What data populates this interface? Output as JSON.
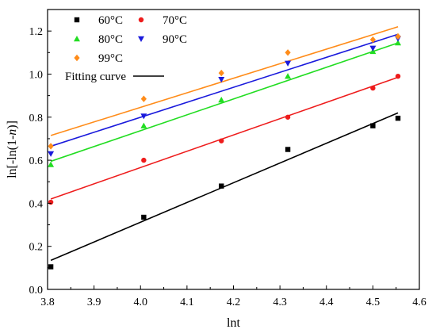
{
  "chart_data": {
    "type": "scatter",
    "xlabel": "lnt",
    "ylabel": "ln[-ln(1-",
    "ylabel_italic": "n",
    "ylabel_suffix": ")]",
    "xlim": [
      3.8,
      4.6
    ],
    "ylim": [
      0.0,
      1.3
    ],
    "x_ticks": [
      "3.8",
      "3.9",
      "4.0",
      "4.1",
      "4.2",
      "4.3",
      "4.4",
      "4.5",
      "4.6"
    ],
    "y_ticks": [
      "0.0",
      "0.2",
      "0.4",
      "0.6",
      "0.8",
      "1.0",
      "1.2"
    ],
    "grid": false,
    "legend_position": "top-left",
    "x": [
      3.807,
      4.007,
      4.174,
      4.317,
      4.5,
      4.554
    ],
    "series": [
      {
        "name": "60°C",
        "marker": "square",
        "color": "#000000",
        "values": [
          0.105,
          0.335,
          0.48,
          0.65,
          0.76,
          0.795
        ],
        "fit": [
          0.135,
          0.82
        ]
      },
      {
        "name": "70°C",
        "marker": "circle",
        "color": "#ee1c1c",
        "values": [
          0.405,
          0.6,
          0.69,
          0.8,
          0.935,
          0.99
        ],
        "fit": [
          0.42,
          0.985
        ]
      },
      {
        "name": "80°C",
        "marker": "triangle-up",
        "color": "#22dd22",
        "values": [
          0.58,
          0.76,
          0.88,
          0.99,
          1.105,
          1.145
        ],
        "fit": [
          0.595,
          1.145
        ]
      },
      {
        "name": "90°C",
        "marker": "triangle-down",
        "color": "#1a1adc",
        "values": [
          0.63,
          0.805,
          0.975,
          1.05,
          1.12,
          1.165
        ],
        "fit": [
          0.665,
          1.185
        ]
      },
      {
        "name": "99°C",
        "marker": "diamond",
        "color": "#ff8c1a",
        "values": [
          0.665,
          0.885,
          1.005,
          1.1,
          1.16,
          1.175
        ],
        "fit": [
          0.715,
          1.22
        ]
      }
    ],
    "fit_legend": "Fitting curve"
  }
}
